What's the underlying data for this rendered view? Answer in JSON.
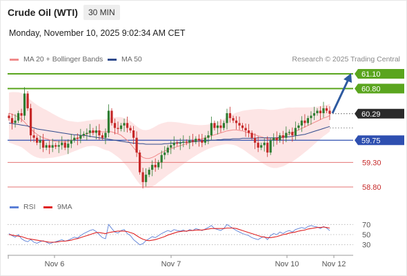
{
  "header": {
    "title": "Crude Oil (WTI)",
    "timeframe": "30 MIN"
  },
  "datetime": "Monday, November 10, 2025 9:02:34 AM CET",
  "legend": {
    "bollinger": {
      "label": "MA 20 + Bollinger Bands",
      "color": "#f08a8a"
    },
    "ma50": {
      "label": "MA 50",
      "color": "#2e4a8c"
    }
  },
  "copyright": "Research © 2025 Trading Central",
  "rsi_legend": {
    "rsi": {
      "label": "RSI",
      "color": "#5b7fd6"
    },
    "ma9": {
      "label": "9MA",
      "color": "#e02020"
    }
  },
  "colors": {
    "up": "#2e7d32",
    "down": "#c62828",
    "resistance": "#5aa51e",
    "support": "#2e4fb0",
    "target": "#e57373",
    "arrow": "#2e5aa0",
    "band": "#fde0e0"
  },
  "chart_data": {
    "type": "candlestick",
    "y_axis_labels": [
      "61.10",
      "60.80",
      "60.29",
      "59.75",
      "59.30",
      "58.80"
    ],
    "x_axis_labels": [
      "Nov 6",
      "Nov 7",
      "Nov 10",
      "Nov 12"
    ],
    "levels": [
      {
        "value": 61.1,
        "label": "61.10",
        "kind": "resistance"
      },
      {
        "value": 60.8,
        "label": "60.80",
        "kind": "resistance"
      },
      {
        "value": 60.29,
        "label": "60.29",
        "kind": "current"
      },
      {
        "value": 59.75,
        "label": "59.75",
        "kind": "pivot"
      },
      {
        "value": 59.3,
        "label": "59.30",
        "kind": "support"
      },
      {
        "value": 58.8,
        "label": "58.80",
        "kind": "support"
      }
    ],
    "closes": [
      60.2,
      60.1,
      60.15,
      60.3,
      60.25,
      60.7,
      60.4,
      59.85,
      59.8,
      59.7,
      59.75,
      59.6,
      59.65,
      59.6,
      59.65,
      59.62,
      59.65,
      59.7,
      59.6,
      59.68,
      59.75,
      59.8,
      59.78,
      59.85,
      59.88,
      59.9,
      59.95,
      59.9,
      59.95,
      59.85,
      59.8,
      59.9,
      60.35,
      60.1,
      60.0,
      59.98,
      60.05,
      60.1,
      60.0,
      59.95,
      59.8,
      59.5,
      59.1,
      58.9,
      59.05,
      59.15,
      59.25,
      59.2,
      59.3,
      59.45,
      59.5,
      59.6,
      59.65,
      59.7,
      59.68,
      59.7,
      59.72,
      59.7,
      59.75,
      59.72,
      59.78,
      59.75,
      59.7,
      59.8,
      59.85,
      60.1,
      60.0,
      60.05,
      60.0,
      60.1,
      60.3,
      60.2,
      60.15,
      60.1,
      60.05,
      60.0,
      59.95,
      59.9,
      59.8,
      59.7,
      59.6,
      59.65,
      59.7,
      59.5,
      59.75,
      59.8,
      59.75,
      59.85,
      59.8,
      59.9,
      59.92,
      59.85,
      60.0,
      60.05,
      60.15,
      60.1,
      60.2,
      60.25,
      60.3,
      60.35,
      60.3,
      60.4,
      60.35,
      60.29
    ],
    "ma20": [
      60.3,
      60.28,
      60.25,
      60.22,
      60.18,
      60.12,
      60.05,
      59.98,
      59.92,
      59.87,
      59.83,
      59.8,
      59.78,
      59.76,
      59.74,
      59.73,
      59.72,
      59.72,
      59.72,
      59.73,
      59.75,
      59.77,
      59.79,
      59.82,
      59.85,
      59.88,
      59.9,
      59.92,
      59.93,
      59.93,
      59.92,
      59.92,
      59.93,
      59.92,
      59.9,
      59.88,
      59.85,
      59.8,
      59.75,
      59.68,
      59.6,
      59.52,
      59.45,
      59.4,
      59.38,
      59.38,
      59.4,
      59.43,
      59.47,
      59.5,
      59.53,
      59.56,
      59.58,
      59.6,
      59.62,
      59.64,
      59.66,
      59.68,
      59.7,
      59.72,
      59.74,
      59.76,
      59.78,
      59.8,
      59.82,
      59.84,
      59.86,
      59.88,
      59.9,
      59.92,
      59.94,
      59.95,
      59.96,
      59.96,
      59.95,
      59.94,
      59.92,
      59.9,
      59.88,
      59.86,
      59.84,
      59.82,
      59.8,
      59.78,
      59.77,
      59.77,
      59.78,
      59.8,
      59.82,
      59.85,
      59.88,
      59.9,
      59.93,
      59.96,
      59.99,
      60.02,
      60.05,
      60.08,
      60.11,
      60.14,
      60.17,
      60.2,
      60.22,
      60.25
    ],
    "ma50": [
      60.1,
      60.09,
      60.08,
      60.07,
      60.06,
      60.05,
      60.04,
      60.02,
      60.0,
      59.98,
      59.97,
      59.96,
      59.95,
      59.94,
      59.93,
      59.92,
      59.91,
      59.9,
      59.89,
      59.88,
      59.87,
      59.86,
      59.86,
      59.85,
      59.85,
      59.84,
      59.83,
      59.82,
      59.81,
      59.8,
      59.79,
      59.78,
      59.77,
      59.76,
      59.75,
      59.74,
      59.73,
      59.72,
      59.71,
      59.7,
      59.69,
      59.69,
      59.68,
      59.68,
      59.67,
      59.67,
      59.67,
      59.67,
      59.67,
      59.67,
      59.68,
      59.68,
      59.69,
      59.69,
      59.7,
      59.7,
      59.71,
      59.71,
      59.72,
      59.72,
      59.72,
      59.73,
      59.73,
      59.74,
      59.74,
      59.75,
      59.75,
      59.76,
      59.76,
      59.77,
      59.77,
      59.77,
      59.78,
      59.78,
      59.78,
      59.79,
      59.79,
      59.79,
      59.79,
      59.79,
      59.8,
      59.8,
      59.8,
      59.8,
      59.8,
      59.8,
      59.8,
      59.81,
      59.81,
      59.82,
      59.82,
      59.83,
      59.84,
      59.85,
      59.86,
      59.87,
      59.89,
      59.91,
      59.93,
      59.95,
      59.97,
      59.99,
      60.01,
      60.03
    ],
    "rsi": {
      "ticks": [
        "70",
        "50",
        "30"
      ],
      "levels": [
        70,
        50,
        30
      ],
      "values": [
        52,
        48,
        45,
        50,
        42,
        38,
        36,
        40,
        35,
        33,
        36,
        38,
        35,
        32,
        34,
        36,
        38,
        40,
        37,
        39,
        42,
        45,
        43,
        48,
        52,
        55,
        58,
        60,
        56,
        50,
        44,
        42,
        70,
        62,
        55,
        53,
        58,
        60,
        52,
        48,
        40,
        35,
        30,
        32,
        38,
        42,
        46,
        44,
        48,
        52,
        55,
        58,
        56,
        60,
        58,
        57,
        59,
        56,
        60,
        58,
        62,
        60,
        58,
        61,
        64,
        68,
        62,
        60,
        58,
        62,
        70,
        66,
        62,
        58,
        55,
        52,
        50,
        48,
        44,
        42,
        40,
        44,
        46,
        40,
        48,
        52,
        50,
        55,
        52,
        56,
        58,
        55,
        60,
        62,
        64,
        62,
        66,
        68,
        66,
        65,
        62,
        66,
        63,
        58
      ],
      "ma9": [
        50,
        49,
        48,
        47,
        46,
        44,
        42,
        41,
        40,
        39,
        38,
        37,
        36,
        35,
        35,
        35,
        36,
        37,
        37,
        38,
        39,
        41,
        42,
        44,
        46,
        48,
        50,
        52,
        54,
        54,
        53,
        52,
        54,
        55,
        56,
        57,
        57,
        57,
        56,
        54,
        52,
        48,
        44,
        41,
        39,
        38,
        39,
        40,
        42,
        44,
        46,
        49,
        51,
        53,
        55,
        56,
        57,
        57,
        58,
        58,
        59,
        59,
        59,
        60,
        61,
        62,
        62,
        62,
        62,
        62,
        63,
        63,
        63,
        62,
        60,
        58,
        56,
        54,
        52,
        50,
        48,
        46,
        45,
        44,
        44,
        45,
        46,
        48,
        50,
        51,
        53,
        54,
        55,
        57,
        58,
        59,
        61,
        62,
        63,
        64,
        64,
        65,
        64,
        63
      ]
    }
  }
}
